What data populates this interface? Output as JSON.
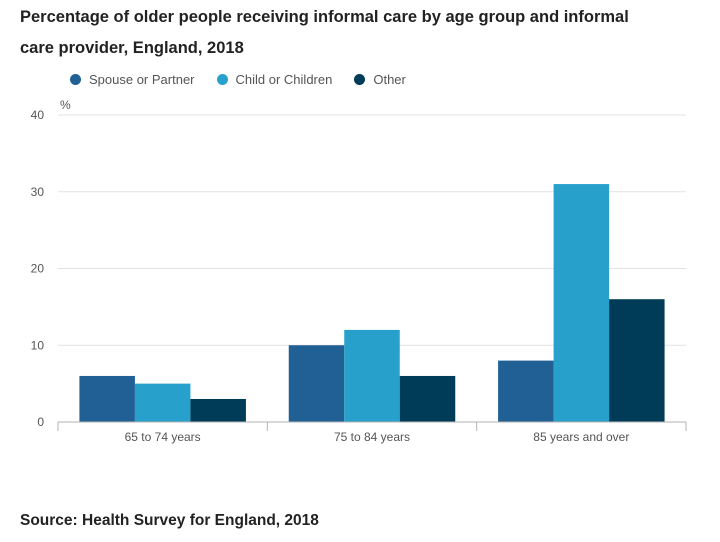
{
  "chart_data": {
    "type": "bar",
    "title": "Percentage of older people receiving informal care by age group and informal care provider, England, 2018",
    "ylabel": "%",
    "ylim": [
      0,
      40
    ],
    "yticks": [
      0,
      10,
      20,
      30,
      40
    ],
    "grid": true,
    "legend_position": "top-left",
    "categories": [
      "65 to 74 years",
      "75 to 84 years",
      "85 years and over"
    ],
    "series": [
      {
        "name": "Spouse or Partner",
        "color": "#206095",
        "values": [
          6,
          10,
          8
        ]
      },
      {
        "name": "Child or Children",
        "color": "#27a0cc",
        "values": [
          5,
          12,
          31
        ]
      },
      {
        "name": "Other",
        "color": "#003c57",
        "values": [
          3,
          6,
          16
        ]
      }
    ]
  },
  "source": "Source: Health Survey for England, 2018"
}
